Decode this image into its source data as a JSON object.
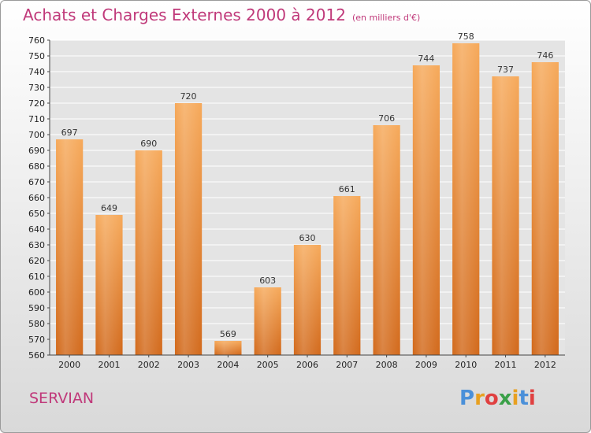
{
  "header": {
    "title": "Achats et Charges Externes 2000 à 2012",
    "subtitle": "(en milliers d'€)"
  },
  "footer": {
    "place": "SERVIAN",
    "logo_letters": [
      "P",
      "r",
      "o",
      "x",
      "i",
      "t",
      "i"
    ]
  },
  "colors": {
    "title": "#c0397a",
    "bar_top": "#f6a95a",
    "bar_bottom": "#d2691b",
    "logo": [
      "#4a90d9",
      "#e8a020",
      "#e04040",
      "#3aa048",
      "#e8a020",
      "#4a90d9",
      "#e04040"
    ]
  },
  "chart_data": {
    "type": "bar",
    "title": "Achats et Charges Externes 2000 à 2012",
    "subtitle": "(en milliers d'€)",
    "xlabel": "",
    "ylabel": "",
    "categories": [
      "2000",
      "2001",
      "2002",
      "2003",
      "2004",
      "2005",
      "2006",
      "2007",
      "2008",
      "2009",
      "2010",
      "2011",
      "2012"
    ],
    "values": [
      697,
      649,
      690,
      720,
      569,
      603,
      630,
      661,
      706,
      744,
      758,
      737,
      746
    ],
    "ylim": [
      560,
      760
    ],
    "yticks": [
      560,
      570,
      580,
      590,
      600,
      610,
      620,
      630,
      640,
      650,
      660,
      670,
      680,
      690,
      700,
      710,
      720,
      730,
      740,
      750,
      760
    ],
    "grid": true,
    "data_labels": true
  }
}
